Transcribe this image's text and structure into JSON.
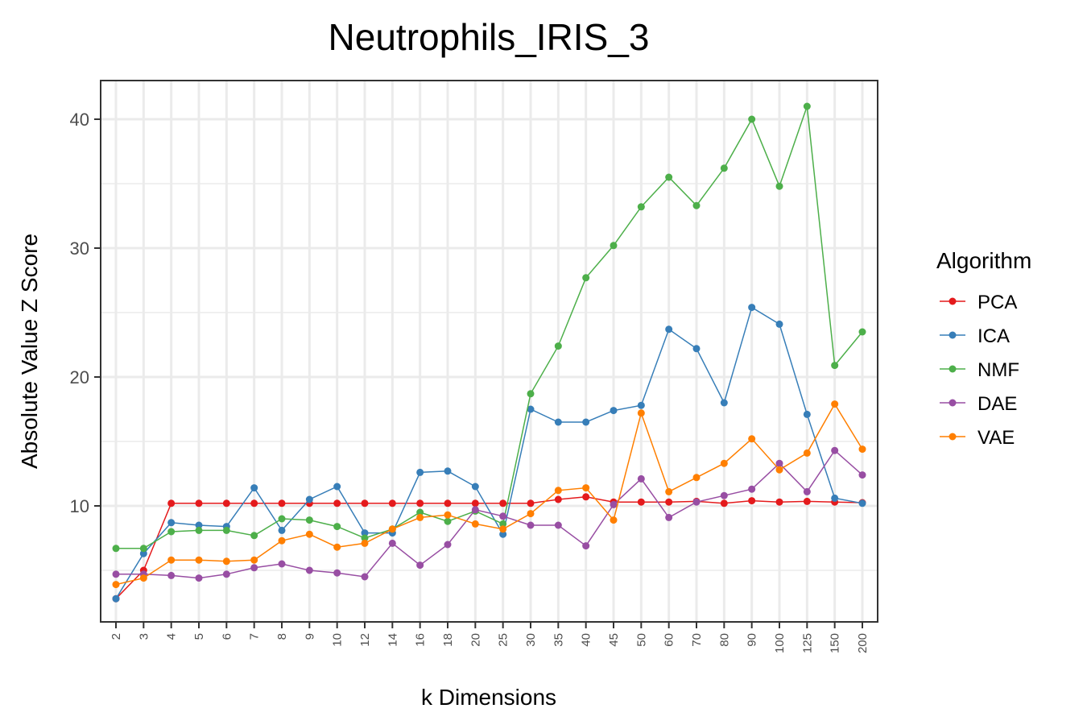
{
  "chart_data": {
    "type": "line",
    "title": "Neutrophils_IRIS_3",
    "xlabel": "k Dimensions",
    "ylabel": "Absolute Value Z Score",
    "categories": [
      "2",
      "3",
      "4",
      "5",
      "6",
      "7",
      "8",
      "9",
      "10",
      "12",
      "14",
      "16",
      "18",
      "20",
      "25",
      "30",
      "35",
      "40",
      "45",
      "50",
      "60",
      "70",
      "80",
      "90",
      "100",
      "125",
      "150",
      "200"
    ],
    "y_ticks": [
      10,
      20,
      30,
      40
    ],
    "y_tick_labels": [
      "10",
      "20",
      "30",
      "40"
    ],
    "ylim": [
      1.0,
      43.0
    ],
    "grid": true,
    "legend_title": "Algorithm",
    "legend_position": "right",
    "series": [
      {
        "name": "PCA",
        "color": "#e41a1c",
        "values": [
          2.8,
          5.0,
          10.2,
          10.2,
          10.2,
          10.2,
          10.2,
          10.2,
          10.2,
          10.2,
          10.2,
          10.2,
          10.2,
          10.2,
          10.2,
          10.2,
          10.5,
          10.7,
          10.3,
          10.3,
          10.3,
          10.35,
          10.2,
          10.4,
          10.3,
          10.35,
          10.3,
          10.25
        ]
      },
      {
        "name": "ICA",
        "color": "#377eb8",
        "values": [
          2.8,
          6.3,
          8.7,
          8.5,
          8.4,
          11.4,
          8.1,
          10.5,
          11.5,
          7.9,
          7.9,
          12.6,
          12.7,
          11.5,
          7.8,
          17.5,
          16.5,
          16.5,
          17.4,
          17.8,
          23.7,
          22.2,
          18.0,
          25.4,
          24.1,
          17.1,
          10.6,
          10.2
        ]
      },
      {
        "name": "NMF",
        "color": "#4daf4a",
        "values": [
          6.7,
          6.7,
          8.0,
          8.1,
          8.1,
          7.7,
          9.0,
          8.9,
          8.4,
          7.5,
          8.2,
          9.5,
          8.8,
          9.6,
          8.6,
          18.7,
          22.4,
          27.7,
          30.2,
          33.2,
          35.5,
          33.3,
          36.2,
          40.0,
          34.8,
          41.0,
          20.9,
          23.5
        ]
      },
      {
        "name": "DAE",
        "color": "#984ea3",
        "values": [
          4.7,
          4.7,
          4.6,
          4.4,
          4.7,
          5.2,
          5.5,
          5.0,
          4.8,
          4.5,
          7.1,
          5.4,
          7.0,
          9.7,
          9.2,
          8.5,
          8.5,
          6.9,
          10.1,
          12.1,
          9.1,
          10.3,
          10.8,
          11.3,
          13.3,
          11.1,
          14.3,
          12.4
        ]
      },
      {
        "name": "VAE",
        "color": "#ff7f00",
        "values": [
          3.9,
          4.4,
          5.8,
          5.8,
          5.7,
          5.8,
          7.3,
          7.8,
          6.8,
          7.1,
          8.2,
          9.1,
          9.3,
          8.6,
          8.2,
          9.4,
          11.2,
          11.4,
          8.9,
          17.2,
          11.1,
          12.2,
          13.3,
          15.2,
          12.8,
          14.1,
          17.9,
          14.4
        ]
      }
    ]
  }
}
